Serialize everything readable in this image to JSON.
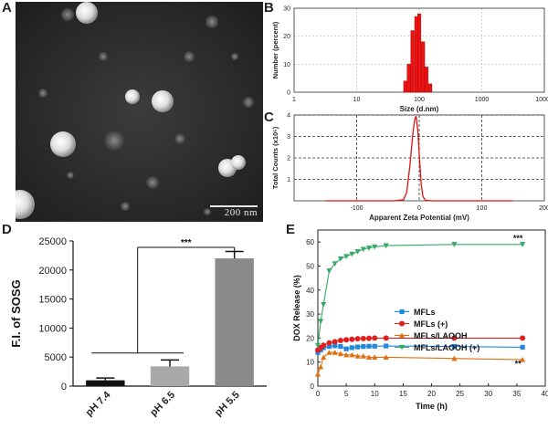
{
  "panels": {
    "a": "A",
    "b": "B",
    "c": "C",
    "d": "D",
    "e": "E"
  },
  "tem": {
    "scale_bar": "200 nm"
  },
  "chart_data": [
    {
      "id": "B",
      "type": "bar",
      "xlabel": "Size (d.nm)",
      "ylabel": "Number (percent)",
      "xscale": "log",
      "xlim": [
        1,
        10000
      ],
      "ylim": [
        0,
        30
      ],
      "xticks": [
        "1",
        "10",
        "100",
        "1000",
        "10000"
      ],
      "yticks": [
        "0",
        "10",
        "20",
        "30"
      ],
      "grid": true,
      "color": "#ee1111",
      "x": [
        60,
        68,
        78,
        90,
        100,
        115,
        130,
        150
      ],
      "values": [
        4,
        10,
        22,
        27,
        28,
        18,
        9,
        3
      ]
    },
    {
      "id": "C",
      "type": "line",
      "xlabel": "Apparent Zeta Potential (mV)",
      "ylabel": "Total Counts (x10⁵)",
      "xlim": [
        -200,
        200
      ],
      "ylim": [
        0,
        4
      ],
      "xticks": [
        "-100",
        "0",
        "100",
        "200"
      ],
      "yticks": [
        "1",
        "2",
        "3",
        "4"
      ],
      "grid": true,
      "color": "#dd1111",
      "x": [
        -150,
        -40,
        -25,
        -20,
        -15,
        -10,
        -7,
        -5,
        -2,
        0,
        3,
        6,
        10,
        20,
        150
      ],
      "y": [
        0,
        0,
        0.05,
        0.4,
        1.6,
        3.2,
        3.8,
        3.95,
        3.2,
        2.2,
        0.8,
        0.2,
        0.02,
        0,
        0
      ]
    },
    {
      "id": "D",
      "type": "bar",
      "ylabel": "F.I. of SOSG",
      "categories": [
        "pH 7.4",
        "pH 6.5",
        "pH 5.5"
      ],
      "values": [
        1000,
        3400,
        22000
      ],
      "errors": [
        400,
        1100,
        1200
      ],
      "colors": [
        "#111111",
        "#a9a9a9",
        "#8a8a8a"
      ],
      "ylim": [
        0,
        25000
      ],
      "yticks": [
        "0",
        "5000",
        "10000",
        "15000",
        "20000",
        "25000"
      ],
      "significance": "***"
    },
    {
      "id": "E",
      "type": "line",
      "xlabel": "Time (h)",
      "ylabel": "DOX Release (%)",
      "xlim": [
        0,
        40
      ],
      "ylim": [
        0,
        65
      ],
      "xticks": [
        "0",
        "5",
        "10",
        "15",
        "20",
        "25",
        "30",
        "35",
        "40"
      ],
      "yticks": [
        "0",
        "10",
        "20",
        "30",
        "40",
        "50",
        "60"
      ],
      "x": [
        0,
        0.5,
        1,
        2,
        3,
        4,
        5,
        6,
        7,
        8,
        9,
        10,
        12,
        24,
        36
      ],
      "series": [
        {
          "name": "MFLs",
          "color": "#2288dd",
          "marker": "square",
          "values": [
            14,
            15,
            16,
            16.5,
            16.8,
            16.5,
            15.5,
            16,
            16.3,
            16.5,
            16.6,
            16.6,
            16.7,
            16.5,
            16.2
          ]
        },
        {
          "name": "MFLs (+)",
          "color": "#e02020",
          "marker": "circle",
          "values": [
            15,
            16,
            17,
            18,
            18.5,
            19,
            19.3,
            19.5,
            19.7,
            19.8,
            19.9,
            20,
            20,
            20,
            20
          ]
        },
        {
          "name": "MFLs/LAOOH",
          "color": "#e07010",
          "marker": "triangle-up",
          "values": [
            5,
            8,
            12,
            14,
            14,
            13.5,
            13,
            13,
            12.5,
            12.5,
            12,
            12,
            12,
            11.5,
            11
          ]
        },
        {
          "name": "MFLs/LAOOH (+)",
          "color": "#33aa66",
          "marker": "triangle-down",
          "values": [
            17,
            27,
            34,
            48,
            51,
            53,
            54,
            55,
            56,
            57,
            57.5,
            58,
            58.5,
            59,
            59
          ]
        }
      ],
      "annotations": [
        "***",
        "**"
      ]
    }
  ]
}
